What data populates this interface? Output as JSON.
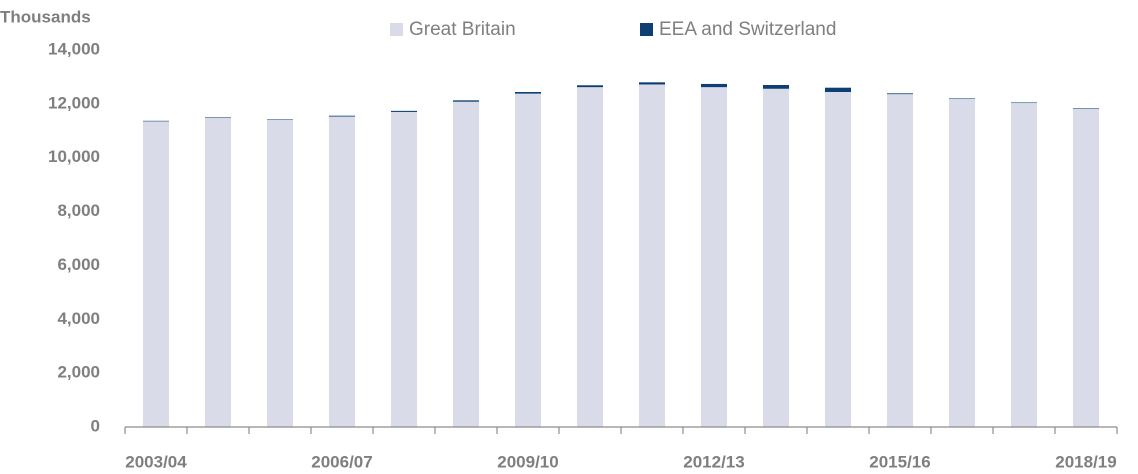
{
  "chart_data": {
    "type": "stacked_bar",
    "y_label": "Thousands",
    "categories": [
      "2003/04",
      null,
      null,
      "2006/07",
      null,
      null,
      "2009/10",
      null,
      null,
      "2012/13",
      null,
      null,
      "2015/16",
      null,
      null,
      "2018/19"
    ],
    "series": [
      {
        "name": "Great Britain",
        "color": "#d9dce8",
        "values": [
          11350,
          11480,
          11400,
          11530,
          11700,
          12080,
          12380,
          12620,
          12720,
          12620,
          12560,
          12440,
          12360,
          12180,
          12030,
          11820
        ]
      },
      {
        "name": "EEA and Switzerland",
        "color": "#0d3f73",
        "values": [
          20,
          20,
          20,
          30,
          40,
          50,
          60,
          70,
          80,
          120,
          140,
          160,
          30,
          20,
          20,
          20
        ]
      }
    ],
    "ylim": [
      0,
      14000
    ],
    "yticks": [
      0,
      {
        "value": 2000,
        "label": "2,000"
      },
      {
        "value": 4000,
        "label": "4,000"
      },
      {
        "value": 6000,
        "label": "6,000"
      },
      {
        "value": 8000,
        "label": "8,000"
      },
      {
        "value": 10000,
        "label": "10,000"
      },
      {
        "value": 12000,
        "label": "12,000"
      },
      {
        "value": 14000,
        "label": "14,000"
      }
    ],
    "grid": false,
    "legend": "top"
  }
}
